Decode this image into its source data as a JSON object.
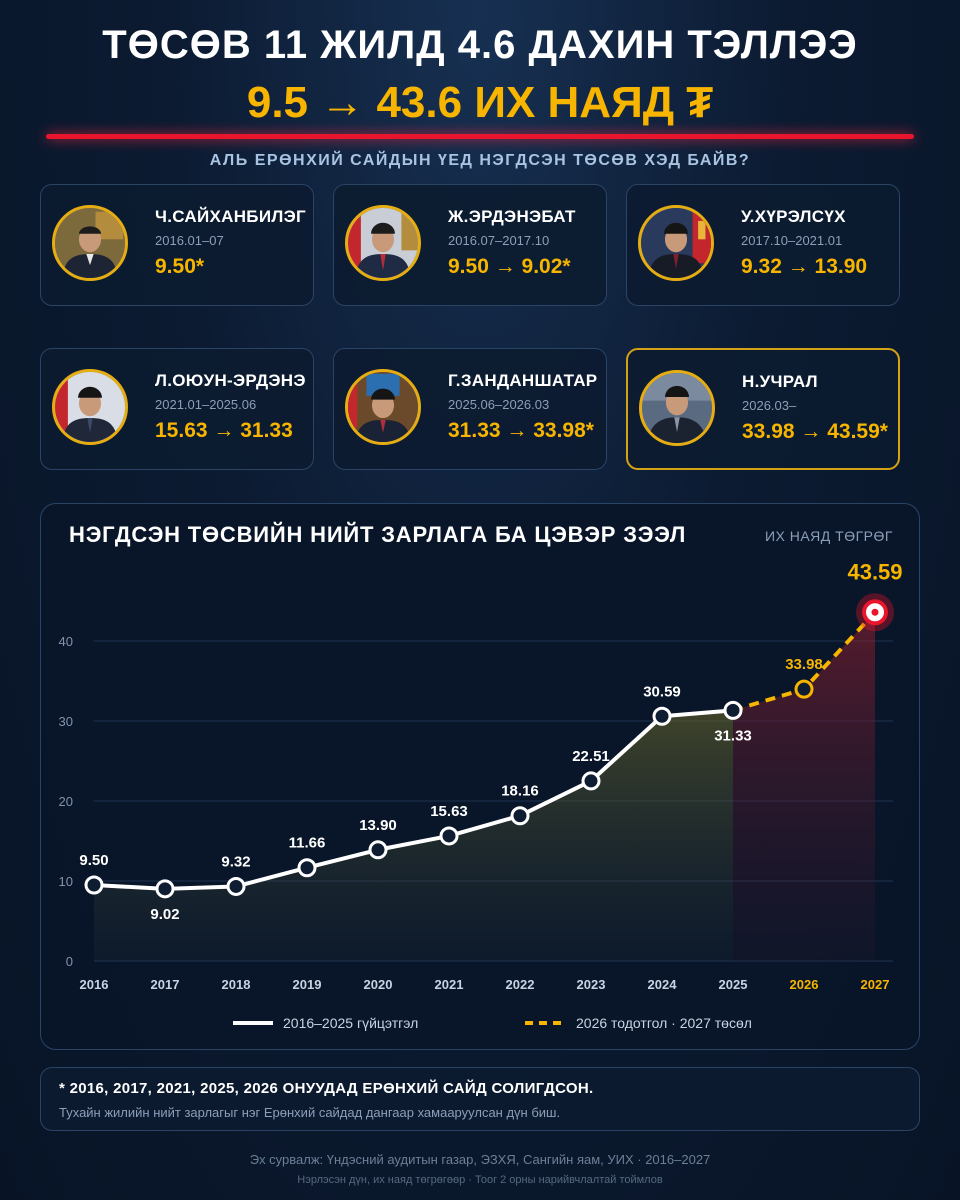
{
  "header": {
    "title": "ТӨСӨВ 11 ЖИЛД 4.6 ДАХИН ТЭЛЛЭЭ",
    "subtitle": "9.5 → 43.6 ИХ НАЯД ₮",
    "question": "АЛЬ ЕРӨНХИЙ САЙДЫН ҮЕД НЭГДСЭН ТӨСӨВ ХЭД БАЙВ?"
  },
  "ministers": [
    {
      "name": "Ч.САЙХАНБИЛЭГ",
      "term": "2016.01–07",
      "budget": "9.50*"
    },
    {
      "name": "Ж.ЭРДЭНЭБАТ",
      "term": "2016.07–2017.10",
      "budget": "9.50 → 9.02*"
    },
    {
      "name": "У.ХҮРЭЛСҮХ",
      "term": "2017.10–2021.01",
      "budget": "9.32 → 13.90"
    },
    {
      "name": "Л.ОЮУН-ЭРДЭНЭ",
      "term": "2021.01–2025.06",
      "budget": "15.63 → 31.33"
    },
    {
      "name": "Г.ЗАНДАНШАТАР",
      "term": "2025.06–2026.03",
      "budget": "31.33 → 33.98*"
    },
    {
      "name": "Н.УЧРАЛ",
      "term": "2026.03–",
      "budget": "33.98 → 43.59*"
    }
  ],
  "chart": {
    "title": "НЭГДСЭН ТӨСВИЙН НИЙТ ЗАРЛАГА БА ЦЭВЭР ЗЭЭЛ",
    "unit": "ИХ НАЯД ТӨГРӨГ"
  },
  "chart_data": {
    "type": "line",
    "x": [
      "2016",
      "2017",
      "2018",
      "2019",
      "2020",
      "2021",
      "2022",
      "2023",
      "2024",
      "2025",
      "2026",
      "2027"
    ],
    "series": [
      {
        "name": "2016–2025 гүйцэтгэл",
        "values": [
          9.5,
          9.02,
          9.32,
          11.66,
          13.9,
          15.63,
          18.16,
          22.51,
          30.59,
          31.33,
          null,
          null
        ],
        "color": "#ffffff"
      },
      {
        "name": "2026 тодотгол · 2027 төсөл",
        "values": [
          null,
          null,
          null,
          null,
          null,
          null,
          null,
          null,
          null,
          31.33,
          33.98,
          43.59
        ],
        "color": "#f7b500"
      }
    ],
    "data_labels": [
      "9.50",
      "9.02",
      "9.32",
      "11.66",
      "13.90",
      "15.63",
      "18.16",
      "22.51",
      "30.59",
      "31.33",
      "33.98",
      "43.59"
    ],
    "y_ticks": [
      0,
      10,
      20,
      30,
      40
    ],
    "ylim": [
      0,
      45
    ],
    "grid": true,
    "legend_position": "bottom-center"
  },
  "note": {
    "line1": "* 2016, 2017, 2021, 2025, 2026 ОНУУДАД ЕРӨНХИЙ САЙД СОЛИГДСОН.",
    "line2": "Тухайн жилийн нийт зарлагыг нэг Ерөнхий сайдад дангаар хамааруулсан дүн биш."
  },
  "footer": {
    "source": "Эх сурвалж: Үндэсний аудитын газар, ЭЗХЯ, Сангийн яам, УИХ · 2016–2027",
    "note": "Нэрлэсэн дүн, их наяд төгрөгөөр · Тоог 2 орны нарийвчлалтай тоймлов"
  },
  "colors": {
    "accent": "#f7b500",
    "highlight_line": "#e8152c",
    "background": "#0c1b32"
  }
}
